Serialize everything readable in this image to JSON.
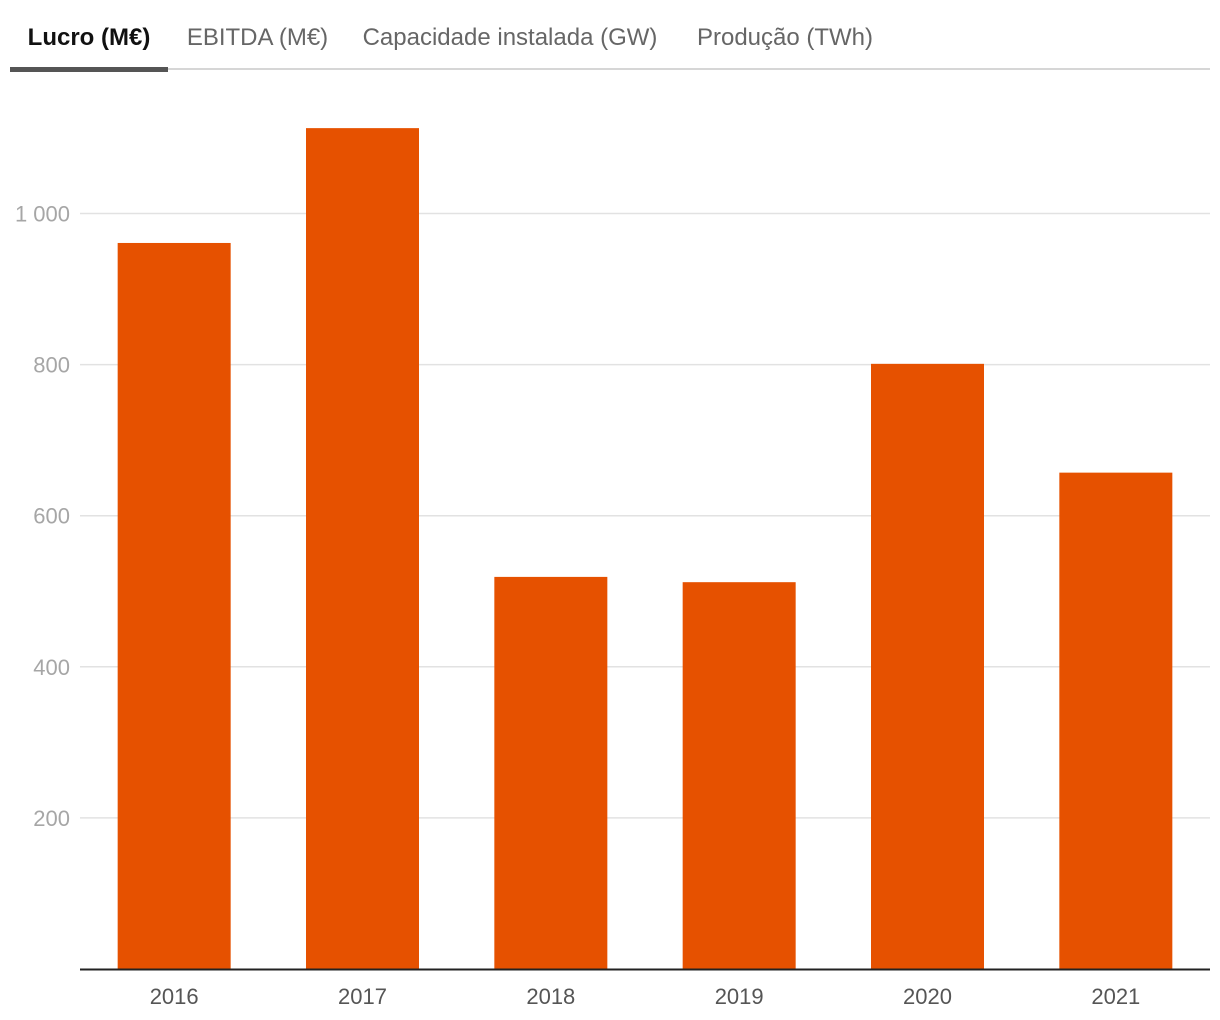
{
  "tabs": [
    {
      "label": "Lucro (M€)",
      "active": true
    },
    {
      "label": "EBITDA (M€)",
      "active": false
    },
    {
      "label": "Capacidade instalada (GW)",
      "active": false
    },
    {
      "label": "Produção (TWh)",
      "active": false
    }
  ],
  "chart_data": {
    "type": "bar",
    "categories": [
      "2016",
      "2017",
      "2018",
      "2019",
      "2020",
      "2021"
    ],
    "values": [
      961,
      1113,
      519,
      512,
      801,
      657
    ],
    "yticks": [
      200,
      400,
      600,
      800,
      1000
    ],
    "ytick_labels": [
      "200",
      "400",
      "600",
      "800",
      "1 000"
    ],
    "ylim": [
      0,
      1130
    ],
    "grid": true,
    "bar_color": "#e65100"
  }
}
